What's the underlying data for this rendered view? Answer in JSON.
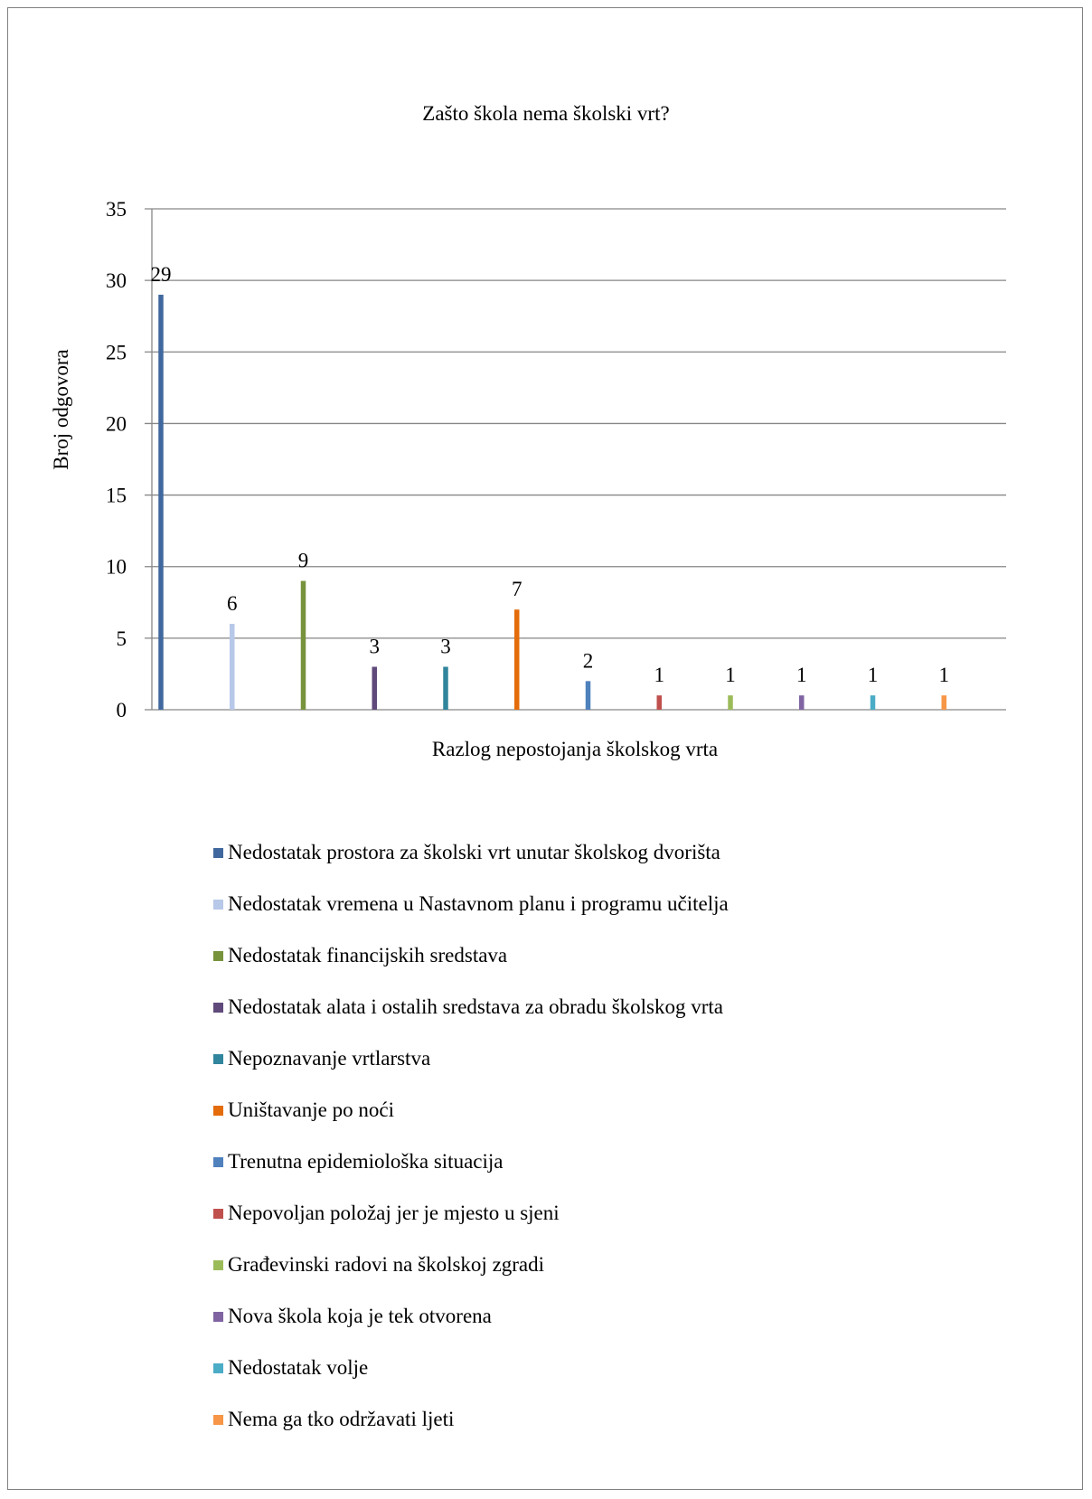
{
  "chart_data": {
    "type": "bar",
    "title": "Zašto škola nema školski vrt?",
    "xlabel": "Razlog nepostojanja školskog vrta",
    "ylabel": "Broj odgovora",
    "ylim": [
      0,
      35
    ],
    "yticks": [
      0,
      5,
      10,
      15,
      20,
      25,
      30,
      35
    ],
    "grid": true,
    "legend_position": "bottom",
    "series": [
      {
        "name": "Nedostatak prostora za školski vrt unutar školskog dvorišta",
        "value": 29,
        "color": "#41689E"
      },
      {
        "name": "Nedostatak vremena u Nastavnom planu i programu učitelja",
        "value": 6,
        "color": "#B7C8E8"
      },
      {
        "name": "Nedostatak financijskih sredstava",
        "value": 9,
        "color": "#77933C"
      },
      {
        "name": "Nedostatak alata i ostalih sredstava za obradu školskog vrta",
        "value": 3,
        "color": "#604A7B"
      },
      {
        "name": "Nepoznavanje vrtlarstva",
        "value": 3,
        "color": "#31859C"
      },
      {
        "name": "Uništavanje po noći",
        "value": 7,
        "color": "#E46C0A"
      },
      {
        "name": "Trenutna epidemiološka situacija",
        "value": 2,
        "color": "#4F81BD"
      },
      {
        "name": "Nepovoljan položaj jer je mjesto u sjeni",
        "value": 1,
        "color": "#C0504D"
      },
      {
        "name": "Građevinski radovi na školskoj zgradi",
        "value": 1,
        "color": "#9BBB59"
      },
      {
        "name": "Nova škola koja je tek otvorena",
        "value": 1,
        "color": "#8064A2"
      },
      {
        "name": "Nedostatak volje",
        "value": 1,
        "color": "#4BACC6"
      },
      {
        "name": "Nema ga tko održavati ljeti",
        "value": 1,
        "color": "#F79646"
      }
    ]
  }
}
